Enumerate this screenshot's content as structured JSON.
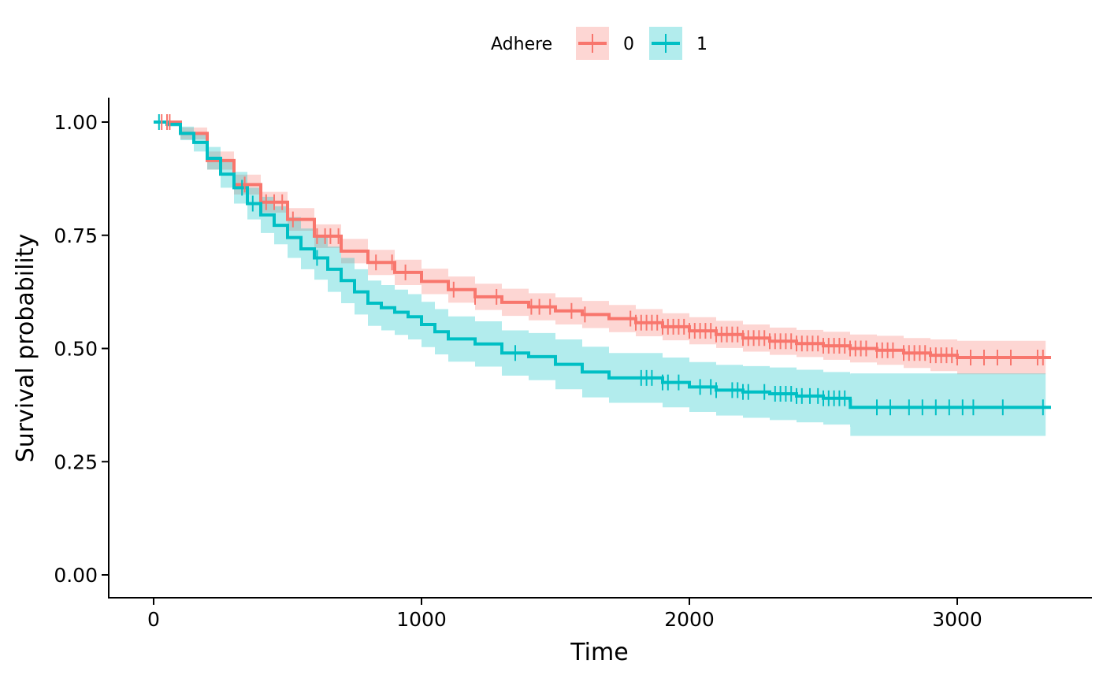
{
  "chart_data": {
    "type": "line",
    "title": "",
    "xlabel": "Time",
    "ylabel": "Survival probability",
    "xlim": [
      -160,
      3500
    ],
    "ylim": [
      -0.05,
      1.05
    ],
    "x_ticks": [
      0,
      1000,
      2000,
      3000
    ],
    "x_tick_labels": [
      "0",
      "1000",
      "2000",
      "3000"
    ],
    "y_ticks": [
      0,
      0.25,
      0.5,
      0.75,
      1.0
    ],
    "y_tick_labels": [
      "0.00",
      "0.25",
      "0.50",
      "0.75",
      "1.00"
    ],
    "grid": false,
    "legend": {
      "position": "top",
      "title": "Adhere"
    },
    "series": [
      {
        "name": "0",
        "color": "#F8766D",
        "fill": "#F8766D",
        "points": [
          [
            0,
            1.0
          ],
          [
            100,
            0.975
          ],
          [
            200,
            0.915
          ],
          [
            300,
            0.862
          ],
          [
            400,
            0.823
          ],
          [
            500,
            0.785
          ],
          [
            600,
            0.748
          ],
          [
            700,
            0.715
          ],
          [
            800,
            0.69
          ],
          [
            900,
            0.668
          ],
          [
            1000,
            0.648
          ],
          [
            1100,
            0.63
          ],
          [
            1200,
            0.614
          ],
          [
            1300,
            0.602
          ],
          [
            1400,
            0.592
          ],
          [
            1500,
            0.583
          ],
          [
            1600,
            0.575
          ],
          [
            1700,
            0.566
          ],
          [
            1800,
            0.557
          ],
          [
            1900,
            0.548
          ],
          [
            2000,
            0.539
          ],
          [
            2100,
            0.531
          ],
          [
            2200,
            0.523
          ],
          [
            2300,
            0.516
          ],
          [
            2400,
            0.511
          ],
          [
            2500,
            0.506
          ],
          [
            2600,
            0.5
          ],
          [
            2700,
            0.496
          ],
          [
            2800,
            0.49
          ],
          [
            2900,
            0.485
          ],
          [
            3000,
            0.48
          ],
          [
            3350,
            0.48
          ]
        ],
        "lower": [
          [
            0,
            1.0
          ],
          [
            100,
            0.962
          ],
          [
            200,
            0.895
          ],
          [
            300,
            0.84
          ],
          [
            400,
            0.8
          ],
          [
            500,
            0.76
          ],
          [
            600,
            0.722
          ],
          [
            700,
            0.688
          ],
          [
            800,
            0.662
          ],
          [
            900,
            0.64
          ],
          [
            1000,
            0.62
          ],
          [
            1100,
            0.601
          ],
          [
            1200,
            0.585
          ],
          [
            1300,
            0.572
          ],
          [
            1400,
            0.562
          ],
          [
            1500,
            0.553
          ],
          [
            1600,
            0.545
          ],
          [
            1700,
            0.536
          ],
          [
            1800,
            0.527
          ],
          [
            1900,
            0.518
          ],
          [
            2000,
            0.509
          ],
          [
            2100,
            0.501
          ],
          [
            2200,
            0.493
          ],
          [
            2300,
            0.486
          ],
          [
            2400,
            0.481
          ],
          [
            2500,
            0.475
          ],
          [
            2600,
            0.469
          ],
          [
            2700,
            0.464
          ],
          [
            2800,
            0.457
          ],
          [
            2900,
            0.45
          ],
          [
            3000,
            0.443
          ],
          [
            3330,
            0.443
          ]
        ],
        "upper": [
          [
            0,
            1.0
          ],
          [
            100,
            0.988
          ],
          [
            200,
            0.935
          ],
          [
            300,
            0.884
          ],
          [
            400,
            0.846
          ],
          [
            500,
            0.81
          ],
          [
            600,
            0.774
          ],
          [
            700,
            0.742
          ],
          [
            800,
            0.718
          ],
          [
            900,
            0.696
          ],
          [
            1000,
            0.676
          ],
          [
            1100,
            0.659
          ],
          [
            1200,
            0.643
          ],
          [
            1300,
            0.632
          ],
          [
            1400,
            0.622
          ],
          [
            1500,
            0.613
          ],
          [
            1600,
            0.605
          ],
          [
            1700,
            0.596
          ],
          [
            1800,
            0.587
          ],
          [
            1900,
            0.578
          ],
          [
            2000,
            0.569
          ],
          [
            2100,
            0.561
          ],
          [
            2200,
            0.553
          ],
          [
            2300,
            0.546
          ],
          [
            2400,
            0.541
          ],
          [
            2500,
            0.537
          ],
          [
            2600,
            0.531
          ],
          [
            2700,
            0.528
          ],
          [
            2800,
            0.523
          ],
          [
            2900,
            0.52
          ],
          [
            3000,
            0.517
          ],
          [
            3330,
            0.517
          ]
        ],
        "censor_times": [
          30,
          50,
          60,
          340,
          420,
          450,
          480,
          520,
          610,
          640,
          660,
          690,
          830,
          890,
          940,
          1120,
          1200,
          1280,
          1410,
          1440,
          1480,
          1560,
          1610,
          1780,
          1800,
          1820,
          1840,
          1860,
          1880,
          1900,
          1920,
          1940,
          1960,
          1980,
          2000,
          2020,
          2040,
          2060,
          2080,
          2100,
          2120,
          2140,
          2160,
          2180,
          2200,
          2220,
          2240,
          2260,
          2280,
          2300,
          2320,
          2340,
          2360,
          2380,
          2400,
          2420,
          2440,
          2460,
          2480,
          2500,
          2520,
          2540,
          2560,
          2580,
          2600,
          2620,
          2640,
          2660,
          2700,
          2720,
          2740,
          2760,
          2800,
          2820,
          2840,
          2860,
          2880,
          2900,
          2920,
          2940,
          2960,
          2980,
          3000,
          3050,
          3100,
          3150,
          3200,
          3300,
          3320
        ]
      },
      {
        "name": "1",
        "color": "#00BFC4",
        "fill": "#00BFC4",
        "points": [
          [
            0,
            1.0
          ],
          [
            50,
            0.995
          ],
          [
            100,
            0.975
          ],
          [
            150,
            0.955
          ],
          [
            200,
            0.92
          ],
          [
            250,
            0.885
          ],
          [
            300,
            0.855
          ],
          [
            350,
            0.82
          ],
          [
            400,
            0.795
          ],
          [
            450,
            0.772
          ],
          [
            500,
            0.745
          ],
          [
            550,
            0.72
          ],
          [
            600,
            0.7
          ],
          [
            650,
            0.675
          ],
          [
            700,
            0.65
          ],
          [
            750,
            0.625
          ],
          [
            800,
            0.6
          ],
          [
            850,
            0.59
          ],
          [
            900,
            0.58
          ],
          [
            950,
            0.57
          ],
          [
            1000,
            0.553
          ],
          [
            1050,
            0.537
          ],
          [
            1100,
            0.521
          ],
          [
            1200,
            0.51
          ],
          [
            1300,
            0.49
          ],
          [
            1400,
            0.482
          ],
          [
            1500,
            0.465
          ],
          [
            1600,
            0.448
          ],
          [
            1700,
            0.435
          ],
          [
            1800,
            0.435
          ],
          [
            1900,
            0.425
          ],
          [
            2000,
            0.415
          ],
          [
            2100,
            0.408
          ],
          [
            2200,
            0.404
          ],
          [
            2300,
            0.4
          ],
          [
            2400,
            0.395
          ],
          [
            2500,
            0.39
          ],
          [
            2600,
            0.385
          ],
          [
            2601,
            0.37
          ],
          [
            3350,
            0.37
          ]
        ],
        "lower": [
          [
            0,
            1.0
          ],
          [
            50,
            0.99
          ],
          [
            100,
            0.96
          ],
          [
            150,
            0.935
          ],
          [
            200,
            0.895
          ],
          [
            250,
            0.855
          ],
          [
            300,
            0.82
          ],
          [
            350,
            0.785
          ],
          [
            400,
            0.755
          ],
          [
            450,
            0.73
          ],
          [
            500,
            0.7
          ],
          [
            550,
            0.675
          ],
          [
            600,
            0.652
          ],
          [
            650,
            0.625
          ],
          [
            700,
            0.6
          ],
          [
            750,
            0.575
          ],
          [
            800,
            0.55
          ],
          [
            850,
            0.54
          ],
          [
            900,
            0.53
          ],
          [
            950,
            0.52
          ],
          [
            1000,
            0.503
          ],
          [
            1050,
            0.487
          ],
          [
            1100,
            0.471
          ],
          [
            1200,
            0.46
          ],
          [
            1300,
            0.44
          ],
          [
            1400,
            0.43
          ],
          [
            1500,
            0.41
          ],
          [
            1600,
            0.392
          ],
          [
            1700,
            0.38
          ],
          [
            1800,
            0.38
          ],
          [
            1900,
            0.37
          ],
          [
            2000,
            0.36
          ],
          [
            2100,
            0.352
          ],
          [
            2200,
            0.347
          ],
          [
            2300,
            0.342
          ],
          [
            2400,
            0.337
          ],
          [
            2500,
            0.332
          ],
          [
            2600,
            0.327
          ],
          [
            2601,
            0.307
          ],
          [
            3330,
            0.307
          ]
        ],
        "upper": [
          [
            0,
            1.0
          ],
          [
            50,
            1.0
          ],
          [
            100,
            0.99
          ],
          [
            150,
            0.975
          ],
          [
            200,
            0.945
          ],
          [
            250,
            0.915
          ],
          [
            300,
            0.89
          ],
          [
            350,
            0.855
          ],
          [
            400,
            0.835
          ],
          [
            450,
            0.814
          ],
          [
            500,
            0.79
          ],
          [
            550,
            0.765
          ],
          [
            600,
            0.748
          ],
          [
            650,
            0.725
          ],
          [
            700,
            0.7
          ],
          [
            750,
            0.675
          ],
          [
            800,
            0.65
          ],
          [
            850,
            0.64
          ],
          [
            900,
            0.63
          ],
          [
            950,
            0.62
          ],
          [
            1000,
            0.603
          ],
          [
            1050,
            0.587
          ],
          [
            1100,
            0.571
          ],
          [
            1200,
            0.56
          ],
          [
            1300,
            0.54
          ],
          [
            1400,
            0.534
          ],
          [
            1500,
            0.52
          ],
          [
            1600,
            0.504
          ],
          [
            1700,
            0.49
          ],
          [
            1800,
            0.49
          ],
          [
            1900,
            0.48
          ],
          [
            2000,
            0.47
          ],
          [
            2100,
            0.464
          ],
          [
            2200,
            0.461
          ],
          [
            2300,
            0.458
          ],
          [
            2400,
            0.453
          ],
          [
            2500,
            0.448
          ],
          [
            2600,
            0.443
          ],
          [
            2601,
            0.445
          ],
          [
            3330,
            0.445
          ]
        ],
        "censor_times": [
          20,
          330,
          370,
          610,
          1350,
          1820,
          1840,
          1860,
          1900,
          1920,
          1960,
          2040,
          2080,
          2100,
          2160,
          2180,
          2200,
          2220,
          2280,
          2320,
          2340,
          2360,
          2380,
          2400,
          2420,
          2450,
          2480,
          2500,
          2520,
          2540,
          2560,
          2580,
          2700,
          2750,
          2820,
          2870,
          2920,
          2970,
          3020,
          3060,
          3170,
          3320
        ]
      }
    ]
  }
}
